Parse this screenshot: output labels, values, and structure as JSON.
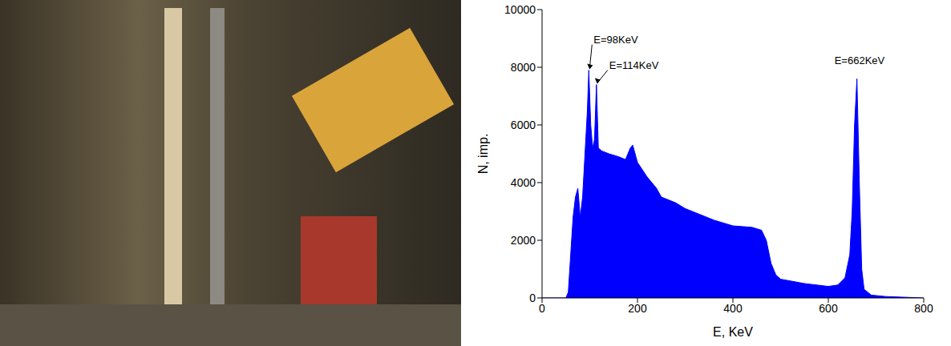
{
  "chart_data": {
    "type": "area",
    "x_label": "E, KeV",
    "y_label": "N, imp.",
    "color": "#0000ff",
    "xlim": [
      0,
      800
    ],
    "xticks": [
      0,
      200,
      400,
      600,
      800
    ],
    "ylim": [
      0,
      10000
    ],
    "yticks": [
      0,
      2000,
      4000,
      6000,
      8000,
      10000
    ],
    "grid": false,
    "x": [
      0,
      50,
      55,
      60,
      65,
      70,
      75,
      80,
      85,
      90,
      95,
      98,
      102,
      106,
      110,
      114,
      118,
      125,
      140,
      160,
      175,
      185,
      190,
      200,
      220,
      240,
      250,
      280,
      300,
      330,
      360,
      400,
      440,
      460,
      470,
      480,
      490,
      500,
      550,
      600,
      620,
      635,
      645,
      650,
      655,
      660,
      665,
      670,
      675,
      690,
      720,
      800
    ],
    "values": [
      0,
      0,
      200,
      1500,
      2800,
      3500,
      3800,
      2800,
      3500,
      5000,
      6500,
      7900,
      6000,
      5200,
      5500,
      7400,
      5200,
      5100,
      5000,
      4900,
      4800,
      5200,
      5300,
      4700,
      4200,
      3800,
      3500,
      3300,
      3100,
      2900,
      2700,
      2500,
      2450,
      2350,
      2000,
      1200,
      800,
      650,
      500,
      400,
      450,
      700,
      1500,
      3000,
      6000,
      7600,
      4000,
      1000,
      300,
      100,
      50,
      0
    ],
    "annotations": [
      {
        "text": "E=98KeV",
        "x": 98,
        "y": 7900
      },
      {
        "text": "E=114KeV",
        "x": 114,
        "y": 7400
      },
      {
        "text": "E=662KeV",
        "x": 660,
        "y": 7600
      }
    ]
  }
}
